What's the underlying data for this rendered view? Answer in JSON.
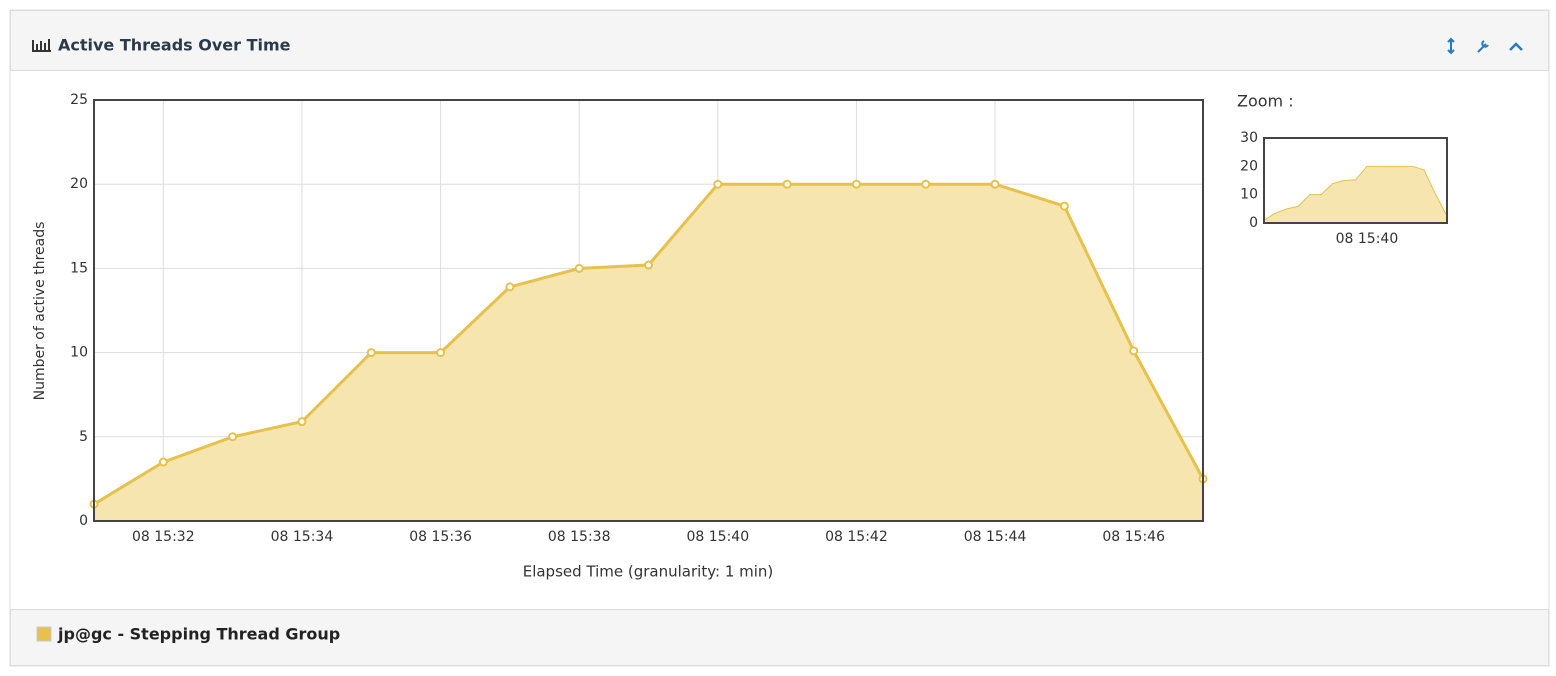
{
  "chart_data": {
    "type": "area",
    "title": "Active Threads Over Time",
    "y_label": "Number of active threads",
    "x_label": "Elapsed Time (granularity: 1 min)",
    "categories": [
      null,
      "08 15:32",
      null,
      "08 15:34",
      null,
      "08 15:36",
      null,
      "08 15:38",
      null,
      "08 15:40",
      null,
      "08 15:42",
      null,
      "08 15:44",
      null,
      "08 15:46",
      null
    ],
    "series": [
      {
        "name": "jp@gc - Stepping Thread Group",
        "color": "#e6c14b",
        "values": [
          1,
          3.5,
          5,
          5.9,
          10,
          10,
          13.9,
          15,
          15.2,
          20,
          20,
          20,
          20,
          20,
          18.7,
          10.1,
          2.5
        ]
      }
    ],
    "ylim": [
      0,
      25
    ],
    "yticks": [
      0,
      5,
      10,
      15,
      20,
      25
    ],
    "grid": true,
    "zoom": {
      "title": "Zoom :",
      "ylim": [
        0,
        30
      ],
      "yticks": [
        0,
        10,
        20,
        30
      ]
    }
  }
}
